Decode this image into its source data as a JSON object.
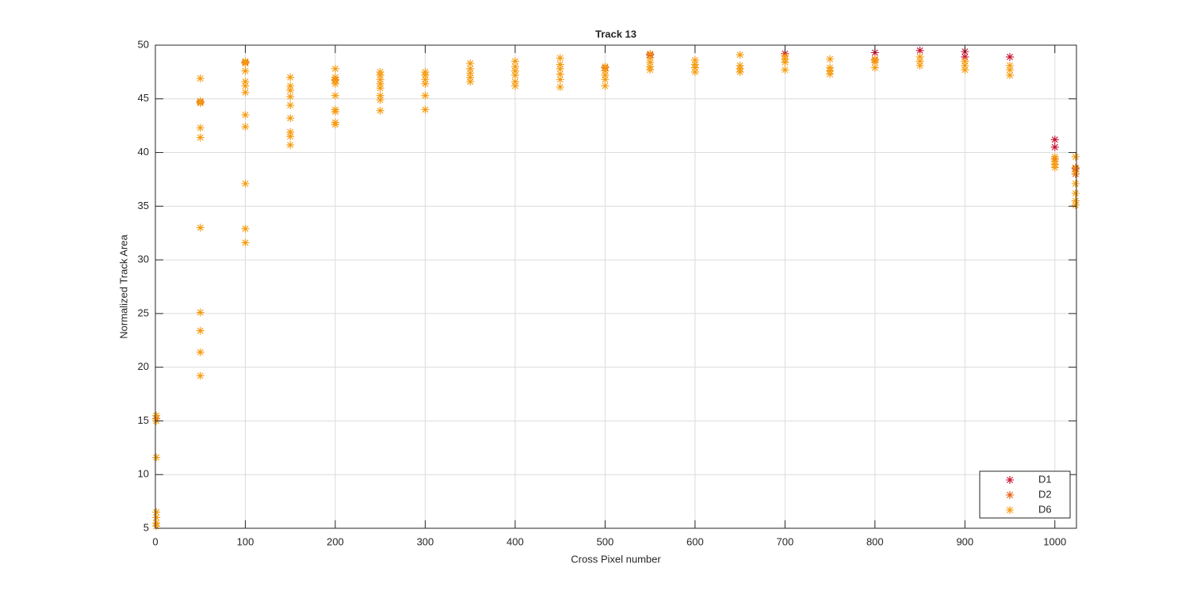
{
  "chart_data": {
    "type": "scatter",
    "title": "Track 13",
    "x_label": "Cross Pixel number",
    "y_label": "Normalized Track Area",
    "xlim": [
      0,
      1024
    ],
    "ylim": [
      5,
      50
    ],
    "xticks": [
      0,
      100,
      200,
      300,
      400,
      500,
      600,
      700,
      800,
      900,
      1000
    ],
    "yticks": [
      5,
      10,
      15,
      20,
      25,
      30,
      35,
      40,
      45,
      50
    ],
    "grid": true,
    "legend": "southeast",
    "marker": "*",
    "series": [
      {
        "name": "D1",
        "color": "#c8102e",
        "x": [
          550,
          700,
          800,
          850,
          900,
          900,
          950,
          1000,
          1000,
          1023
        ],
        "values": [
          49.1,
          49.2,
          49.3,
          49.5,
          49.4,
          48.9,
          48.9,
          41.2,
          40.5,
          38.5
        ]
      },
      {
        "name": "D2",
        "color": "#e8590c",
        "x": [
          1,
          50,
          100,
          200,
          500,
          800,
          1000,
          1023
        ],
        "values": [
          15.2,
          44.7,
          48.4,
          46.8,
          47.9,
          48.6,
          39.4,
          38.0
        ]
      },
      {
        "name": "D6",
        "color": "#f59a0c",
        "x": [
          1,
          1,
          1,
          1,
          1,
          1,
          1,
          50,
          50,
          50,
          50,
          50,
          50,
          50,
          50,
          50,
          50,
          100,
          100,
          100,
          100,
          100,
          100,
          100,
          100,
          100,
          100,
          100,
          150,
          150,
          150,
          150,
          150,
          150,
          150,
          150,
          150,
          200,
          200,
          200,
          200,
          200,
          200,
          200,
          200,
          200,
          250,
          250,
          250,
          250,
          250,
          250,
          250,
          250,
          300,
          300,
          300,
          300,
          300,
          300,
          350,
          350,
          350,
          350,
          350,
          400,
          400,
          400,
          400,
          400,
          400,
          450,
          450,
          450,
          450,
          450,
          450,
          500,
          500,
          500,
          500,
          500,
          550,
          550,
          550,
          550,
          550,
          600,
          600,
          600,
          600,
          650,
          650,
          650,
          650,
          700,
          700,
          700,
          700,
          750,
          750,
          750,
          750,
          800,
          800,
          800,
          850,
          850,
          850,
          900,
          900,
          900,
          950,
          950,
          950,
          1000,
          1000,
          1000,
          1000,
          1023,
          1023,
          1023,
          1023,
          1023,
          1023,
          1023
        ],
        "values": [
          15.5,
          15.0,
          11.6,
          6.5,
          6.0,
          5.5,
          5.2,
          46.9,
          44.8,
          44.6,
          42.3,
          41.4,
          33.0,
          25.1,
          23.4,
          21.4,
          19.2,
          48.5,
          48.3,
          47.6,
          46.6,
          46.2,
          45.6,
          43.5,
          42.4,
          37.1,
          32.9,
          31.6,
          47.0,
          46.2,
          45.8,
          45.2,
          44.4,
          43.2,
          41.9,
          41.5,
          40.7,
          47.8,
          47.0,
          46.7,
          46.4,
          45.3,
          44.0,
          43.8,
          42.8,
          42.6,
          47.5,
          47.2,
          46.8,
          46.4,
          46.0,
          45.3,
          44.9,
          43.9,
          47.5,
          47.2,
          46.8,
          46.4,
          45.3,
          44.0,
          48.3,
          47.8,
          47.4,
          47.0,
          46.6,
          48.5,
          48.0,
          47.6,
          47.2,
          46.6,
          46.2,
          48.8,
          48.2,
          47.8,
          47.3,
          46.8,
          46.1,
          48.0,
          47.6,
          47.2,
          46.8,
          46.2,
          49.2,
          48.8,
          48.4,
          48.0,
          47.7,
          48.6,
          48.2,
          47.9,
          47.5,
          49.1,
          48.1,
          47.8,
          47.5,
          49.0,
          48.7,
          48.4,
          47.7,
          48.7,
          47.9,
          47.6,
          47.3,
          48.7,
          48.4,
          47.9,
          48.9,
          48.5,
          48.1,
          48.5,
          48.1,
          47.7,
          48.1,
          47.7,
          47.2,
          39.6,
          39.2,
          38.9,
          38.6,
          39.6,
          38.6,
          38.2,
          37.1,
          36.2,
          35.5,
          35.1
        ]
      }
    ]
  }
}
